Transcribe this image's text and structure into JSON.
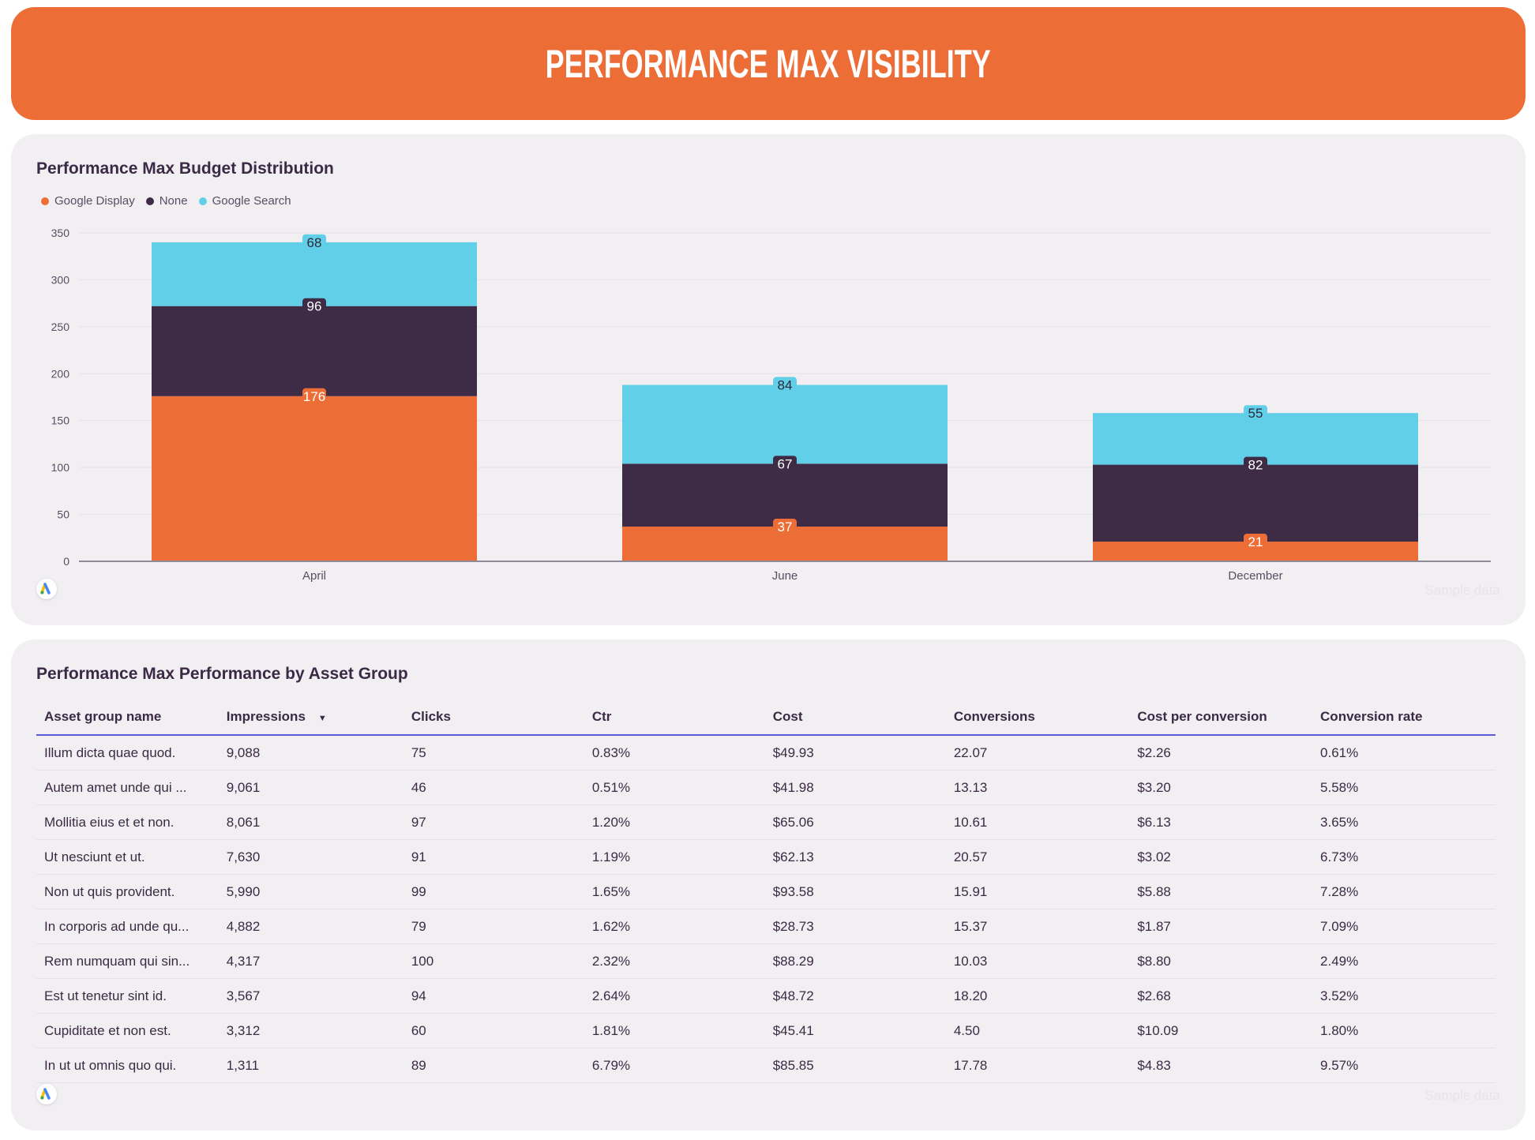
{
  "header": {
    "title": "PERFORMANCE MAX VISIBILITY"
  },
  "budget_card": {
    "title": "Performance Max Budget Distribution",
    "watermark": "Sample data",
    "logo_icon": "google-ads-logo"
  },
  "chart_data": {
    "type": "bar",
    "stacked": true,
    "categories": [
      "April",
      "June",
      "December"
    ],
    "series": [
      {
        "name": "Google Display",
        "color": "#EC6D36",
        "values": [
          176,
          37,
          21
        ]
      },
      {
        "name": "None",
        "color": "#3E2C46",
        "values": [
          96,
          67,
          82
        ]
      },
      {
        "name": "Google Search",
        "color": "#62CFE9",
        "values": [
          68,
          84,
          55
        ]
      }
    ],
    "ylim": [
      0,
      350
    ],
    "yticks": [
      0,
      50,
      100,
      150,
      200,
      250,
      300,
      350
    ],
    "grid": true,
    "legend": "top-left",
    "data_labels": true
  },
  "table_card": {
    "title": "Performance Max Performance by Asset Group",
    "watermark": "Sample data",
    "sort_column": "Impressions",
    "sort_direction": "descending",
    "columns": [
      "Asset group name",
      "Impressions",
      "Clicks",
      "Ctr",
      "Cost",
      "Conversions",
      "Cost per conversion",
      "Conversion rate"
    ],
    "rows": [
      [
        "Illum dicta quae quod.",
        "9,088",
        "75",
        "0.83%",
        "$49.93",
        "22.07",
        "$2.26",
        "0.61%"
      ],
      [
        "Autem amet unde qui ...",
        "9,061",
        "46",
        "0.51%",
        "$41.98",
        "13.13",
        "$3.20",
        "5.58%"
      ],
      [
        "Mollitia eius et et non.",
        "8,061",
        "97",
        "1.20%",
        "$65.06",
        "10.61",
        "$6.13",
        "3.65%"
      ],
      [
        "Ut nesciunt et ut.",
        "7,630",
        "91",
        "1.19%",
        "$62.13",
        "20.57",
        "$3.02",
        "6.73%"
      ],
      [
        "Non ut quis provident.",
        "5,990",
        "99",
        "1.65%",
        "$93.58",
        "15.91",
        "$5.88",
        "7.28%"
      ],
      [
        "In corporis ad unde qu...",
        "4,882",
        "79",
        "1.62%",
        "$28.73",
        "15.37",
        "$1.87",
        "7.09%"
      ],
      [
        "Rem numquam qui sin...",
        "4,317",
        "100",
        "2.32%",
        "$88.29",
        "10.03",
        "$8.80",
        "2.49%"
      ],
      [
        "Est ut tenetur sint id.",
        "3,567",
        "94",
        "2.64%",
        "$48.72",
        "18.20",
        "$2.68",
        "3.52%"
      ],
      [
        "Cupiditate et non est.",
        "3,312",
        "60",
        "1.81%",
        "$45.41",
        "4.50",
        "$10.09",
        "1.80%"
      ],
      [
        "In ut ut omnis quo qui.",
        "1,311",
        "89",
        "6.79%",
        "$85.85",
        "17.78",
        "$4.83",
        "9.57%"
      ]
    ]
  }
}
